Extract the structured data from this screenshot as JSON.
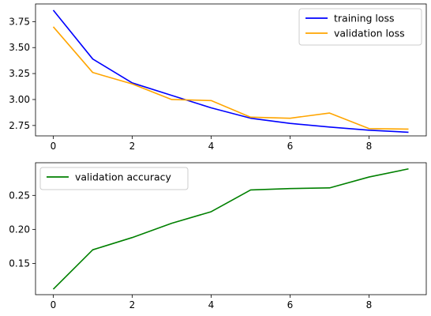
{
  "chart_data": [
    {
      "type": "line",
      "title": "",
      "xlabel": "",
      "ylabel": "",
      "xlim": [
        -0.45,
        9.45
      ],
      "ylim": [
        2.65,
        3.92
      ],
      "x_ticks": [
        0,
        2,
        4,
        6,
        8
      ],
      "x_tick_labels": [
        "0",
        "2",
        "4",
        "6",
        "8"
      ],
      "y_ticks": [
        2.75,
        3.0,
        3.25,
        3.5,
        3.75
      ],
      "y_tick_labels": [
        "2.75",
        "3.00",
        "3.25",
        "3.50",
        "3.75"
      ],
      "grid": false,
      "legend_position": "upper right",
      "x": [
        0,
        1,
        2,
        3,
        4,
        5,
        6,
        7,
        8,
        9
      ],
      "series": [
        {
          "name": "training loss",
          "color": "#0000ff",
          "values": [
            3.86,
            3.39,
            3.16,
            3.04,
            2.92,
            2.82,
            2.77,
            2.735,
            2.705,
            2.685
          ]
        },
        {
          "name": "validation loss",
          "color": "#ffa500",
          "values": [
            3.7,
            3.26,
            3.15,
            3.0,
            2.99,
            2.83,
            2.82,
            2.87,
            2.72,
            2.715
          ]
        }
      ]
    },
    {
      "type": "line",
      "title": "",
      "xlabel": "",
      "ylabel": "",
      "xlim": [
        -0.45,
        9.45
      ],
      "ylim": [
        0.104,
        0.298
      ],
      "x_ticks": [
        0,
        2,
        4,
        6,
        8
      ],
      "x_tick_labels": [
        "0",
        "2",
        "4",
        "6",
        "8"
      ],
      "y_ticks": [
        0.15,
        0.2,
        0.25
      ],
      "y_tick_labels": [
        "0.15",
        "0.20",
        "0.25"
      ],
      "grid": false,
      "legend_position": "upper left",
      "x": [
        0,
        1,
        2,
        3,
        4,
        5,
        6,
        7,
        8,
        9
      ],
      "series": [
        {
          "name": "validation accuracy",
          "color": "#008000",
          "values": [
            0.112,
            0.17,
            0.188,
            0.209,
            0.226,
            0.258,
            0.26,
            0.261,
            0.277,
            0.289
          ]
        }
      ]
    }
  ]
}
